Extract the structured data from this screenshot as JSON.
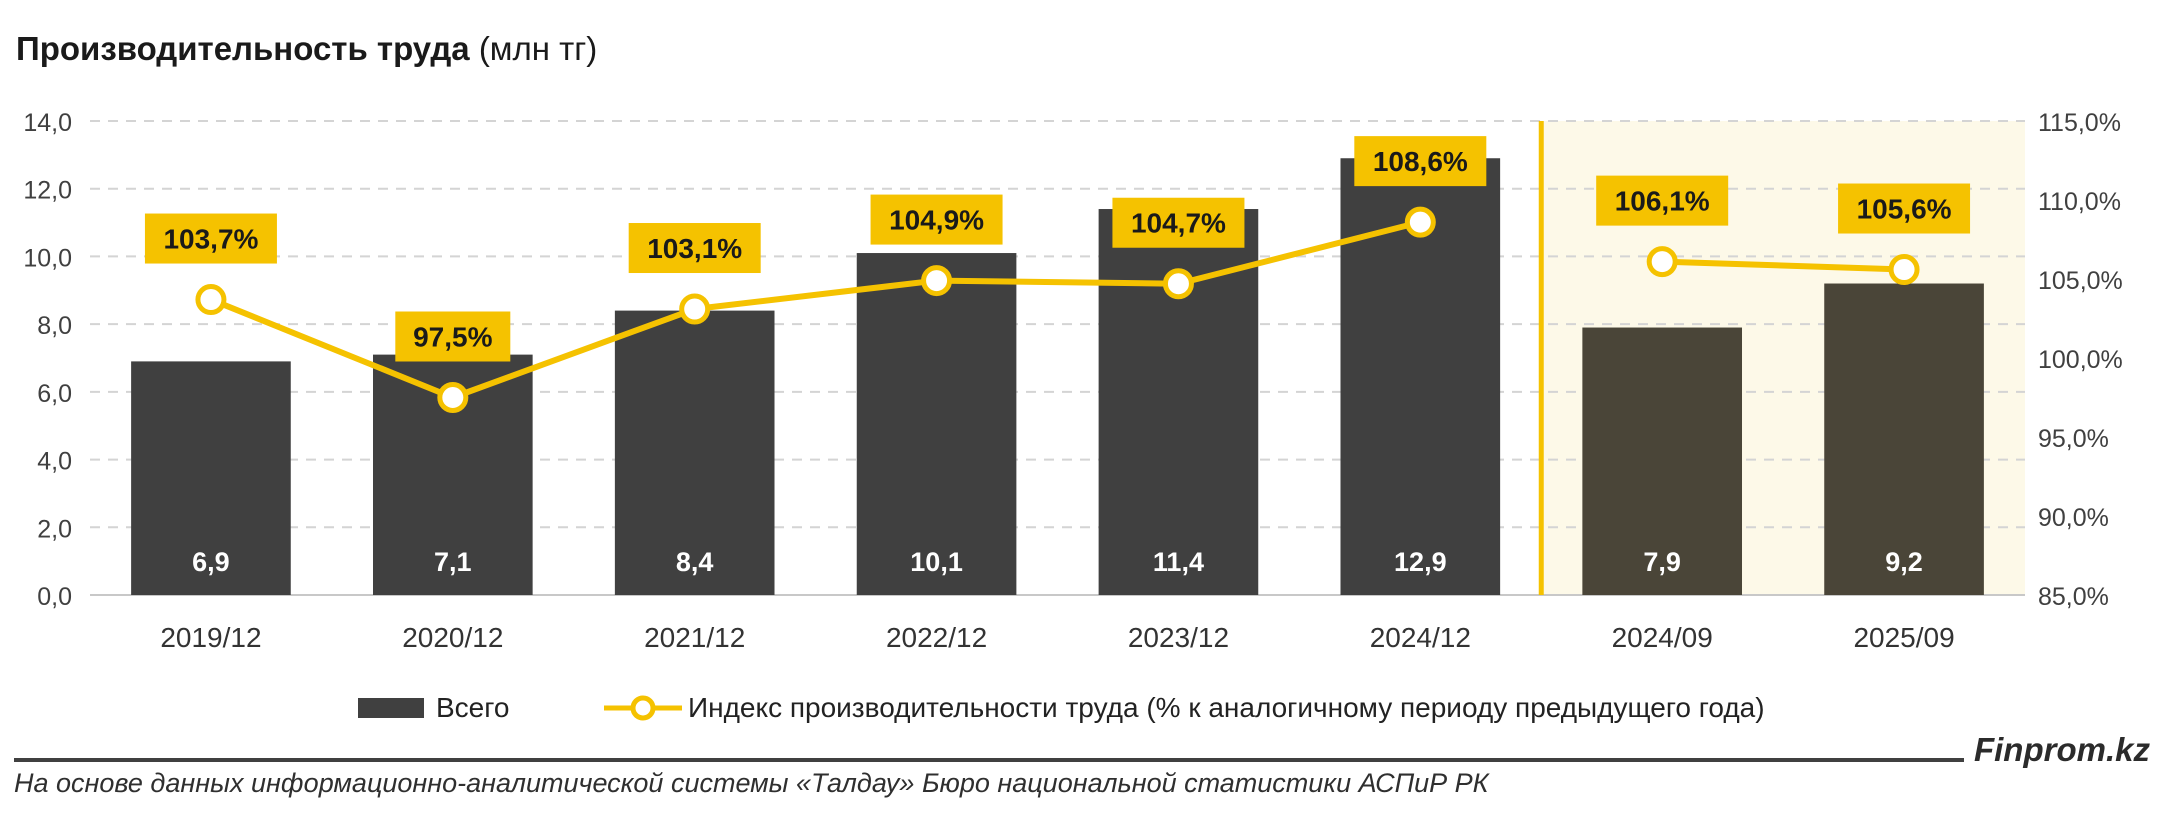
{
  "title": {
    "bold": "Производительность труда",
    "normal": "(млн тг)"
  },
  "chart_data": {
    "type": "bar",
    "categories": [
      "2019/12",
      "2020/12",
      "2021/12",
      "2022/12",
      "2023/12",
      "2024/12",
      "2024/09",
      "2025/09"
    ],
    "series": [
      {
        "name": "Всего",
        "type": "bar",
        "axis": "left",
        "values": [
          6.9,
          7.1,
          8.4,
          10.1,
          11.4,
          12.9,
          7.9,
          9.2
        ],
        "labels": [
          "6,9",
          "7,1",
          "8,4",
          "10,1",
          "11,4",
          "12,9",
          "7,9",
          "9,2"
        ]
      },
      {
        "name": "Индекс производительности труда (% к аналогичному периоду предыдущего года)",
        "type": "line",
        "axis": "right",
        "values": [
          103.7,
          97.5,
          103.1,
          104.9,
          104.7,
          108.6,
          106.1,
          105.6
        ],
        "labels": [
          "103,7%",
          "97,5%",
          "103,1%",
          "104,9%",
          "104,7%",
          "108,6%",
          "106,1%",
          "105,6%"
        ]
      }
    ],
    "left_axis": {
      "min": 0,
      "max": 14,
      "ticks": [
        "0,0",
        "2,0",
        "4,0",
        "6,0",
        "8,0",
        "10,0",
        "12,0",
        "14,0"
      ]
    },
    "right_axis": {
      "min": 85,
      "max": 115,
      "ticks": [
        "85,0%",
        "90,0%",
        "95,0%",
        "100,0%",
        "105,0%",
        "110,0%",
        "115,0%"
      ]
    },
    "highlight_from_category": "2024/09",
    "grid": true,
    "legend": "bottom"
  },
  "colors": {
    "bar": "#404040",
    "bar_highlight": "#4a4538",
    "line": "#f5c200",
    "label_bg": "#f5c200",
    "highlight_bg": "#fdf9e8",
    "divider": "#f5c200",
    "grid": "#d4d4d4"
  },
  "legend": {
    "bar_label": "Всего",
    "line_label": "Индекс производительности труда (% к аналогичному периоду предыдущего года)"
  },
  "footer": {
    "brand": "Finprom.kz",
    "source": "На основе данных информационно-аналитической системы «Талдау» Бюро национальной статистики АСПиР РК"
  }
}
